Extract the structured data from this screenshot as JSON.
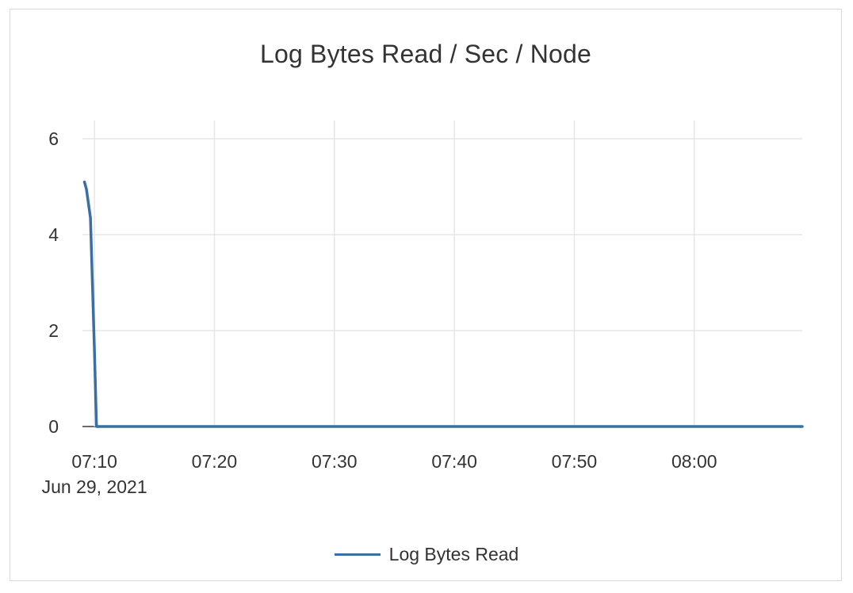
{
  "chart_data": {
    "type": "line",
    "title": "Log Bytes Read / Sec / Node",
    "xlabel": "",
    "ylabel": "",
    "x_range": [
      "2021-06-29 07:09",
      "2021-06-29 08:09"
    ],
    "ylim": [
      0,
      6
    ],
    "y_ticks": [
      0,
      2,
      4,
      6
    ],
    "x_ticks": [
      {
        "time": "2021-06-29 07:10",
        "label": "07:10",
        "sublabel": "Jun 29, 2021"
      },
      {
        "time": "2021-06-29 07:20",
        "label": "07:20"
      },
      {
        "time": "2021-06-29 07:30",
        "label": "07:30"
      },
      {
        "time": "2021-06-29 07:40",
        "label": "07:40"
      },
      {
        "time": "2021-06-29 07:50",
        "label": "07:50"
      },
      {
        "time": "2021-06-29 08:00",
        "label": "08:00"
      }
    ],
    "grid": true,
    "legend_position": "bottom",
    "series": [
      {
        "name": "Log Bytes Read",
        "color": "#3a6fa5",
        "points": [
          {
            "x": "2021-06-29 07:09:10",
            "y": 5.1
          },
          {
            "x": "2021-06-29 07:09:20",
            "y": 4.95
          },
          {
            "x": "2021-06-29 07:09:40",
            "y": 4.35
          },
          {
            "x": "2021-06-29 07:10:00",
            "y": 1.6
          },
          {
            "x": "2021-06-29 07:10:10",
            "y": 0
          },
          {
            "x": "2021-06-29 07:20:00",
            "y": 0
          },
          {
            "x": "2021-06-29 07:30:00",
            "y": 0
          },
          {
            "x": "2021-06-29 07:40:00",
            "y": 0
          },
          {
            "x": "2021-06-29 07:50:00",
            "y": 0
          },
          {
            "x": "2021-06-29 08:00:00",
            "y": 0
          },
          {
            "x": "2021-06-29 08:09:00",
            "y": 0
          }
        ]
      }
    ]
  }
}
